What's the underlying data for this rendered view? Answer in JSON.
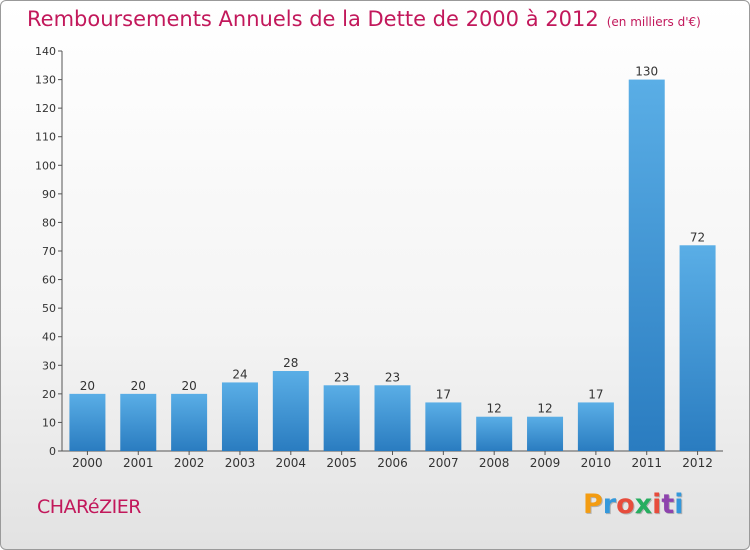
{
  "title": "Remboursements Annuels de la Dette de 2000 à 2012",
  "unit": "(en milliers d'€)",
  "place": "CHARéZIER",
  "brand": {
    "text": "Proxiti",
    "colors": [
      "#f39c12",
      "#3498db",
      "#e74c3c",
      "#27ae60",
      "#e74c3c",
      "#8e44ad",
      "#3498db"
    ]
  },
  "colors": {
    "title": "#c2185b",
    "bar_light": "#5aaee6",
    "bar_dark": "#2a7cc0"
  },
  "chart_data": {
    "type": "bar",
    "categories": [
      "2000",
      "2001",
      "2002",
      "2003",
      "2004",
      "2005",
      "2006",
      "2007",
      "2008",
      "2009",
      "2010",
      "2011",
      "2012"
    ],
    "values": [
      20,
      20,
      20,
      24,
      28,
      23,
      23,
      17,
      12,
      12,
      17,
      130,
      72
    ],
    "ylim": [
      0,
      140
    ],
    "yticks": [
      0,
      10,
      20,
      30,
      40,
      50,
      60,
      70,
      80,
      90,
      100,
      110,
      120,
      130,
      140
    ],
    "grid": false
  }
}
